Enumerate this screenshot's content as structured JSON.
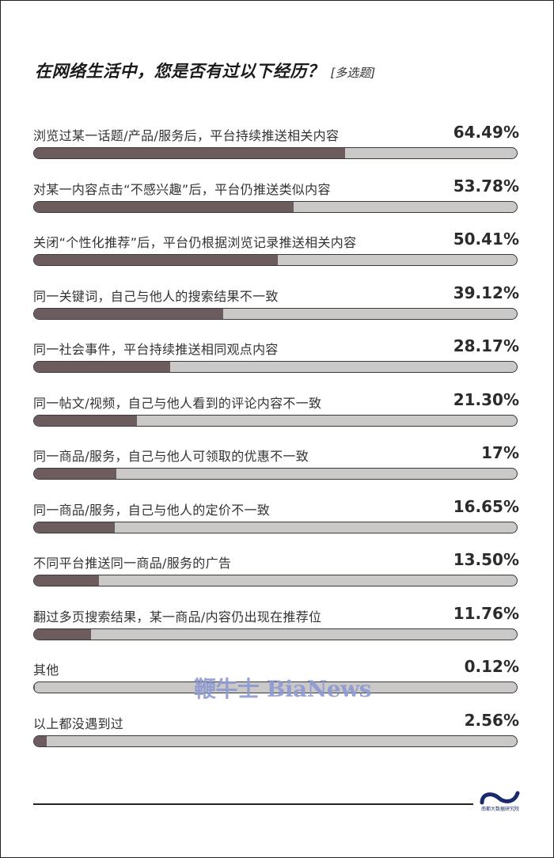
{
  "title": "在网络生活中，您是否有过以下经历？",
  "title_tag": "[多选题]",
  "watermark": "鞭牛士 BiaNews",
  "logo_text": "南都大数据研究院",
  "colors": {
    "fill": "#6d5c5e",
    "track": "#cbc8c8",
    "border": "#3a3a3a",
    "text": "#333333",
    "logo": "#1a2a6e"
  },
  "chart_data": {
    "type": "bar",
    "orientation": "horizontal",
    "xlim": [
      0,
      100
    ],
    "categories": [
      "浏览过某一话题/产品/服务后，平台持续推送相关内容",
      "对某一内容点击“不感兴趣”后，平台仍推送类似内容",
      "关闭“个性化推荐”后，平台仍根据浏览记录推送相关内容",
      "同一关键词，自己与他人的搜索结果不一致",
      "同一社会事件，平台持续推送相同观点内容",
      "同一帖文/视频，自己与他人看到的评论内容不一致",
      "同一商品/服务，自己与他人可领取的优惠不一致",
      "同一商品/服务，自己与他人的定价不一致",
      "不同平台推送同一商品/服务的广告",
      "翻过多页搜索结果，某一商品/内容仍出现在推荐位",
      "其他",
      "以上都没遇到过"
    ],
    "values": [
      64.49,
      53.78,
      50.41,
      39.12,
      28.17,
      21.3,
      17,
      16.65,
      13.5,
      11.76,
      0.12,
      2.56
    ],
    "value_labels": [
      "64.49%",
      "53.78%",
      "50.41%",
      "39.12%",
      "28.17%",
      "21.30%",
      "17%",
      "16.65%",
      "13.50%",
      "11.76%",
      "0.12%",
      "2.56%"
    ]
  }
}
